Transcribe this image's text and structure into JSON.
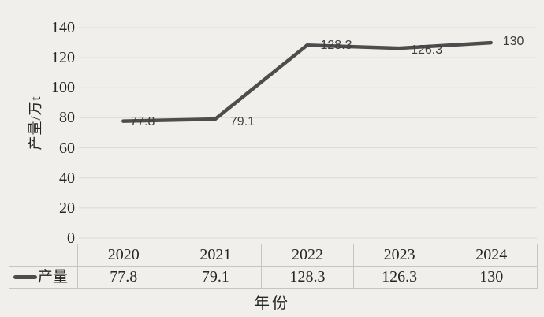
{
  "chart_data": {
    "type": "line",
    "title": "",
    "categories": [
      "2020",
      "2021",
      "2022",
      "2023",
      "2024"
    ],
    "series": [
      {
        "name": "产量",
        "values": [
          77.8,
          79.1,
          128.3,
          126.3,
          130
        ]
      }
    ],
    "data_labels": [
      "77.8",
      "79.1",
      "128.3",
      "126.3",
      "130"
    ],
    "xlabel": "年份",
    "ylabel": "产量/万t",
    "ylim": [
      0,
      140
    ],
    "yticks": [
      140,
      120,
      100,
      80,
      60,
      40,
      20,
      0
    ],
    "grid": true,
    "legend_position": "data-table-left",
    "table": {
      "header_row": [
        "2020",
        "2021",
        "2022",
        "2023",
        "2024"
      ],
      "value_row": [
        "77.8",
        "79.1",
        "128.3",
        "126.3",
        "130"
      ],
      "legend_label": "产量"
    },
    "colors": {
      "background": "#f0efec",
      "line": "#4d4d4d",
      "grid": "#dcdbd7",
      "text": "#262626",
      "data_label_text": "#3e3e3e",
      "table_border": "#c6c5c1"
    }
  }
}
